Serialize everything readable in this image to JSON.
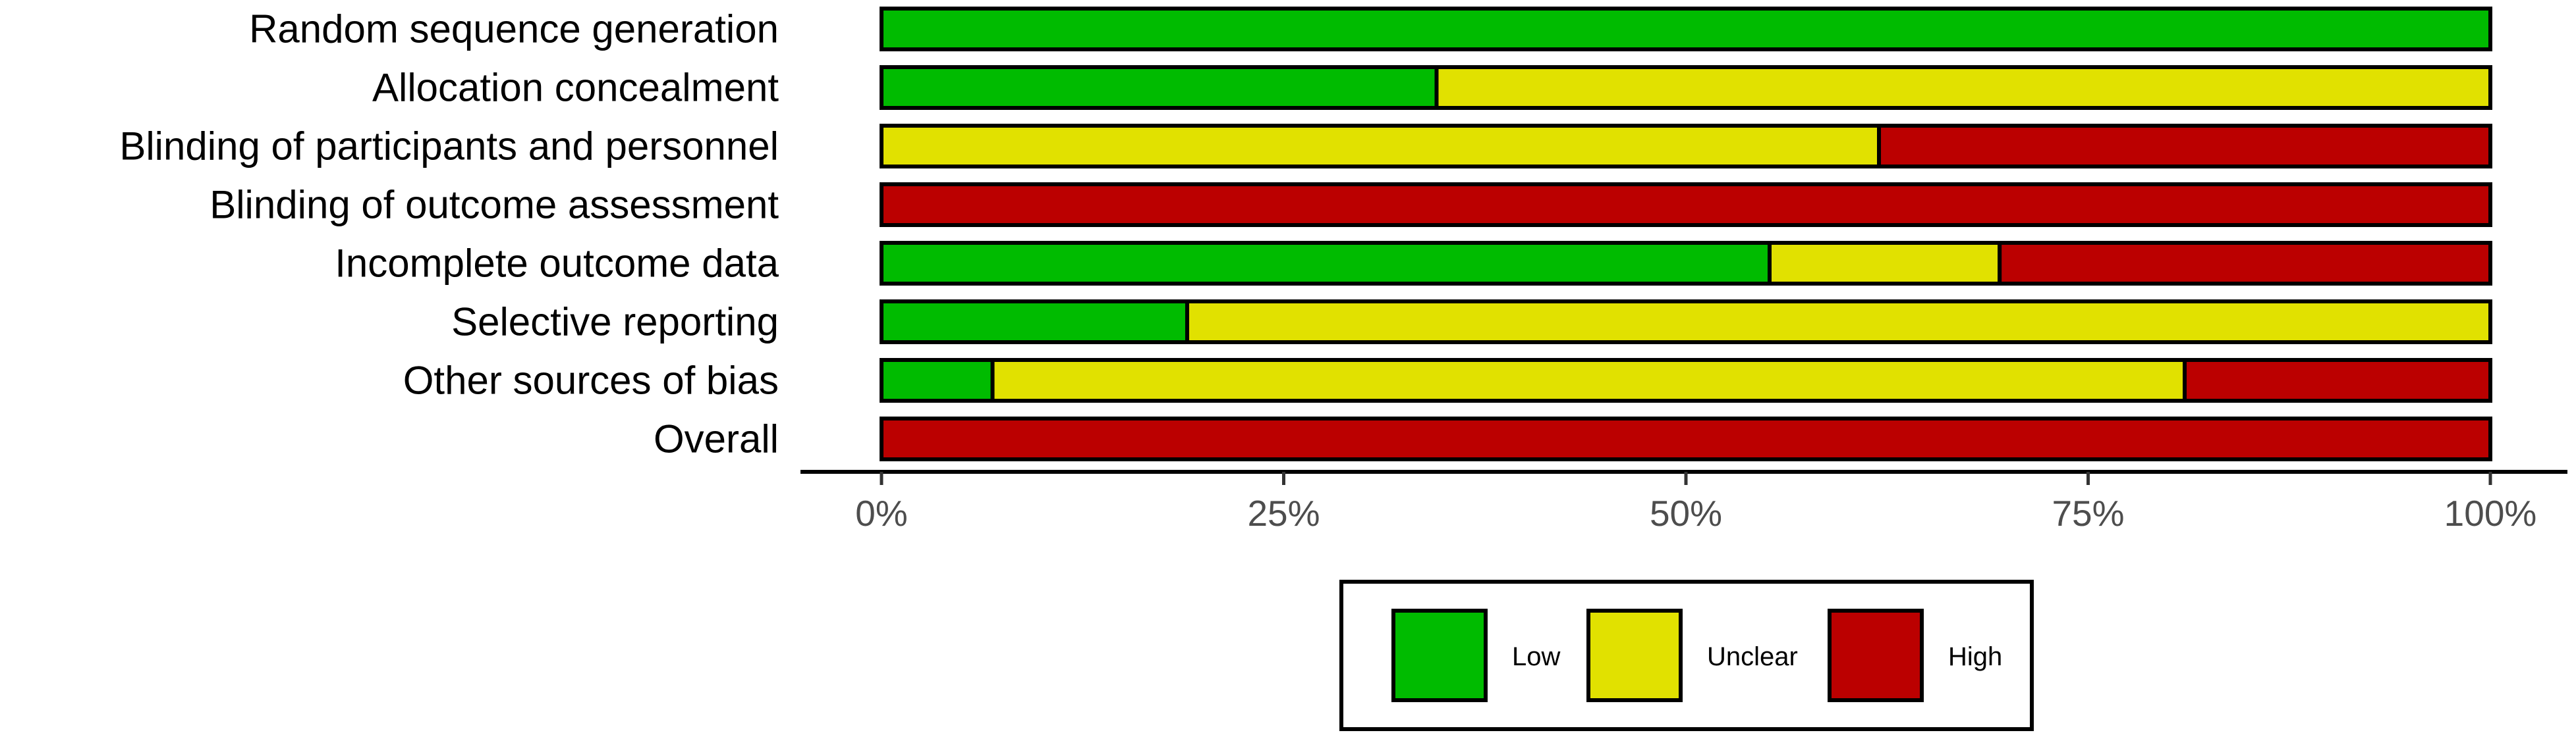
{
  "chart_data": {
    "type": "bar",
    "orientation": "horizontal",
    "stacked": true,
    "categories": [
      "Random sequence generation",
      "Allocation concealment",
      "Blinding of participants and personnel",
      "Blinding of outcome assessment",
      "Incomplete outcome data",
      "Selective reporting",
      "Other sources of bias",
      "Overall"
    ],
    "series": [
      {
        "name": "Low",
        "color": "#00bb00",
        "values": [
          100,
          34.5,
          0,
          0,
          55.2,
          19,
          6.9,
          0
        ]
      },
      {
        "name": "Unclear",
        "color": "#e1e100",
        "values": [
          0,
          65.5,
          62,
          0,
          14.3,
          81,
          74.1,
          0
        ]
      },
      {
        "name": "High",
        "color": "#bb0000",
        "values": [
          0,
          0,
          38,
          100,
          30.5,
          0,
          19,
          100
        ]
      }
    ],
    "xlim": [
      0,
      100
    ],
    "xticks": [
      "0%",
      "25%",
      "50%",
      "75%",
      "100%"
    ],
    "title": "",
    "xlabel": "",
    "ylabel": "",
    "grid": false,
    "legend_position": "bottom"
  }
}
